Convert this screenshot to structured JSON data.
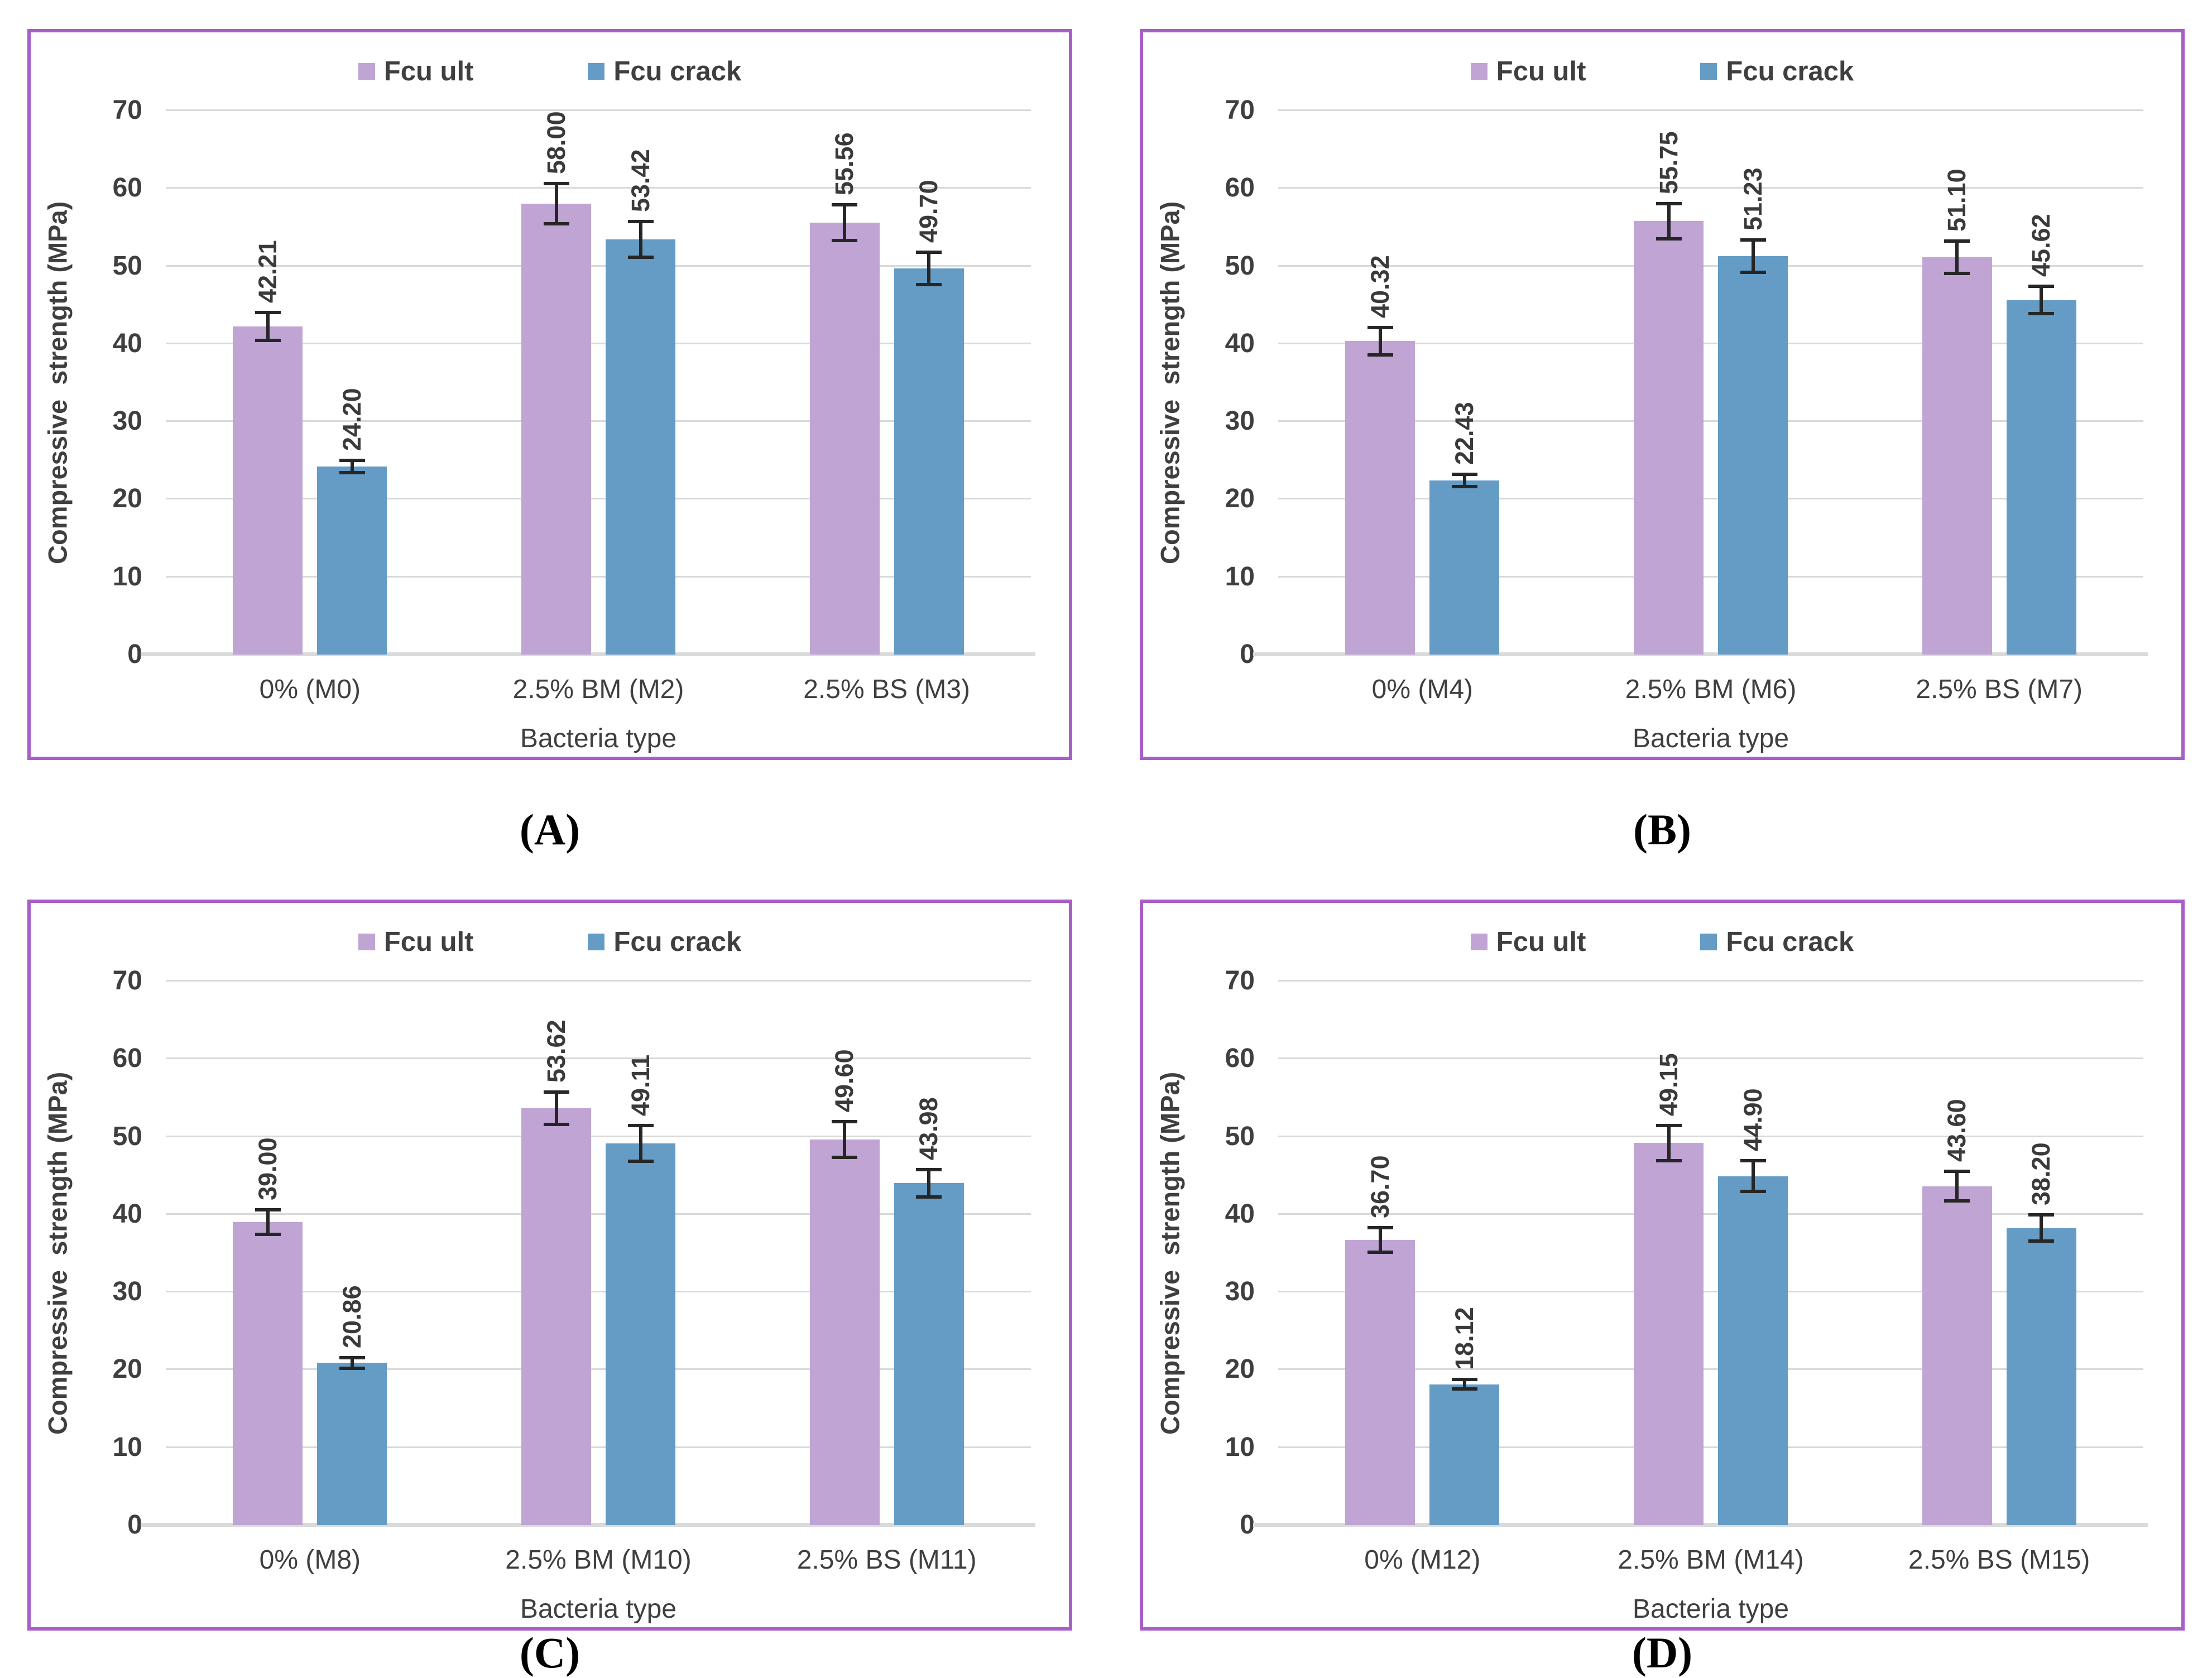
{
  "colors": {
    "fcu_ult": "#bfa4d4",
    "fcu_crack": "#649cc6",
    "panel_border": "#a95dc7",
    "gridline": "#d9d9d9",
    "baseline": "#dadada",
    "text": "#3f3f3f",
    "error_bar": "#262626",
    "caption": "#000000"
  },
  "legend": {
    "items": [
      {
        "label": "Fcu ult",
        "color_key": "fcu_ult",
        "icon": "legend-swatch-square"
      },
      {
        "label": "Fcu crack",
        "color_key": "fcu_crack",
        "icon": "legend-swatch-square"
      }
    ]
  },
  "chart_data": [
    {
      "type": "bar",
      "panel_caption": "(A)",
      "xlabel": "Bacteria type",
      "ylabel": "Compressive  strength (MPa)",
      "ylim": [
        0,
        70
      ],
      "yticks": [
        0,
        10,
        20,
        30,
        40,
        50,
        60,
        70
      ],
      "grid": true,
      "legend_position": "top-center",
      "categories": [
        "0% (M0)",
        "2.5% BM (M2)",
        "2.5% BS (M3)"
      ],
      "series": [
        {
          "name": "Fcu ult",
          "color_key": "fcu_ult",
          "values": [
            42.21,
            58.0,
            55.56
          ],
          "value_labels": [
            "42.21",
            "58.00",
            "55.56"
          ],
          "errors": [
            2.0,
            2.8,
            2.5
          ]
        },
        {
          "name": "Fcu crack",
          "color_key": "fcu_crack",
          "values": [
            24.2,
            53.42,
            49.7
          ],
          "value_labels": [
            "24.20",
            "53.42",
            "49.70"
          ],
          "errors": [
            1.0,
            2.5,
            2.3
          ]
        }
      ]
    },
    {
      "type": "bar",
      "panel_caption": "(B)",
      "xlabel": "Bacteria type",
      "ylabel": "Compressive  strength (MPa)",
      "ylim": [
        0,
        70
      ],
      "yticks": [
        0,
        10,
        20,
        30,
        40,
        50,
        60,
        70
      ],
      "grid": true,
      "legend_position": "top-center",
      "categories": [
        "0% (M4)",
        "2.5% BM (M6)",
        "2.5% BS (M7)"
      ],
      "series": [
        {
          "name": "Fcu ult",
          "color_key": "fcu_ult",
          "values": [
            40.32,
            55.75,
            51.1
          ],
          "value_labels": [
            "40.32",
            "55.75",
            "51.10"
          ],
          "errors": [
            2.0,
            2.5,
            2.3
          ]
        },
        {
          "name": "Fcu crack",
          "color_key": "fcu_crack",
          "values": [
            22.43,
            51.23,
            45.62
          ],
          "value_labels": [
            "22.43",
            "51.23",
            "45.62"
          ],
          "errors": [
            1.0,
            2.3,
            2.0
          ]
        }
      ]
    },
    {
      "type": "bar",
      "panel_caption": "(C)",
      "xlabel": "Bacteria type",
      "ylabel": "Compressive  strength (MPa)",
      "ylim": [
        0,
        70
      ],
      "yticks": [
        0,
        10,
        20,
        30,
        40,
        50,
        60,
        70
      ],
      "grid": true,
      "legend_position": "top-center",
      "categories": [
        "0% (M8)",
        "2.5% BM (M10)",
        "2.5% BS (M11)"
      ],
      "series": [
        {
          "name": "Fcu ult",
          "color_key": "fcu_ult",
          "values": [
            39.0,
            53.62,
            49.6
          ],
          "value_labels": [
            "39.00",
            "53.62",
            "49.60"
          ],
          "errors": [
            1.8,
            2.3,
            2.5
          ]
        },
        {
          "name": "Fcu crack",
          "color_key": "fcu_crack",
          "values": [
            20.86,
            49.11,
            43.98
          ],
          "value_labels": [
            "20.86",
            "49.11",
            "43.98"
          ],
          "errors": [
            0.9,
            2.5,
            2.0
          ]
        }
      ]
    },
    {
      "type": "bar",
      "panel_caption": "(D)",
      "xlabel": "Bacteria type",
      "ylabel": "Compressive  strength (MPa)",
      "ylim": [
        0,
        70
      ],
      "yticks": [
        0,
        10,
        20,
        30,
        40,
        50,
        60,
        70
      ],
      "grid": true,
      "legend_position": "top-center",
      "categories": [
        "0% (M12)",
        "2.5% BM (M14)",
        "2.5% BS (M15)"
      ],
      "series": [
        {
          "name": "Fcu ult",
          "color_key": "fcu_ult",
          "values": [
            36.7,
            49.15,
            43.6
          ],
          "value_labels": [
            "36.70",
            "49.15",
            "43.60"
          ],
          "errors": [
            1.8,
            2.5,
            2.1
          ]
        },
        {
          "name": "Fcu crack",
          "color_key": "fcu_crack",
          "values": [
            18.12,
            44.9,
            38.2
          ],
          "value_labels": [
            "18.12",
            "44.90",
            "38.20"
          ],
          "errors": [
            0.8,
            2.2,
            1.9
          ]
        }
      ]
    }
  ]
}
